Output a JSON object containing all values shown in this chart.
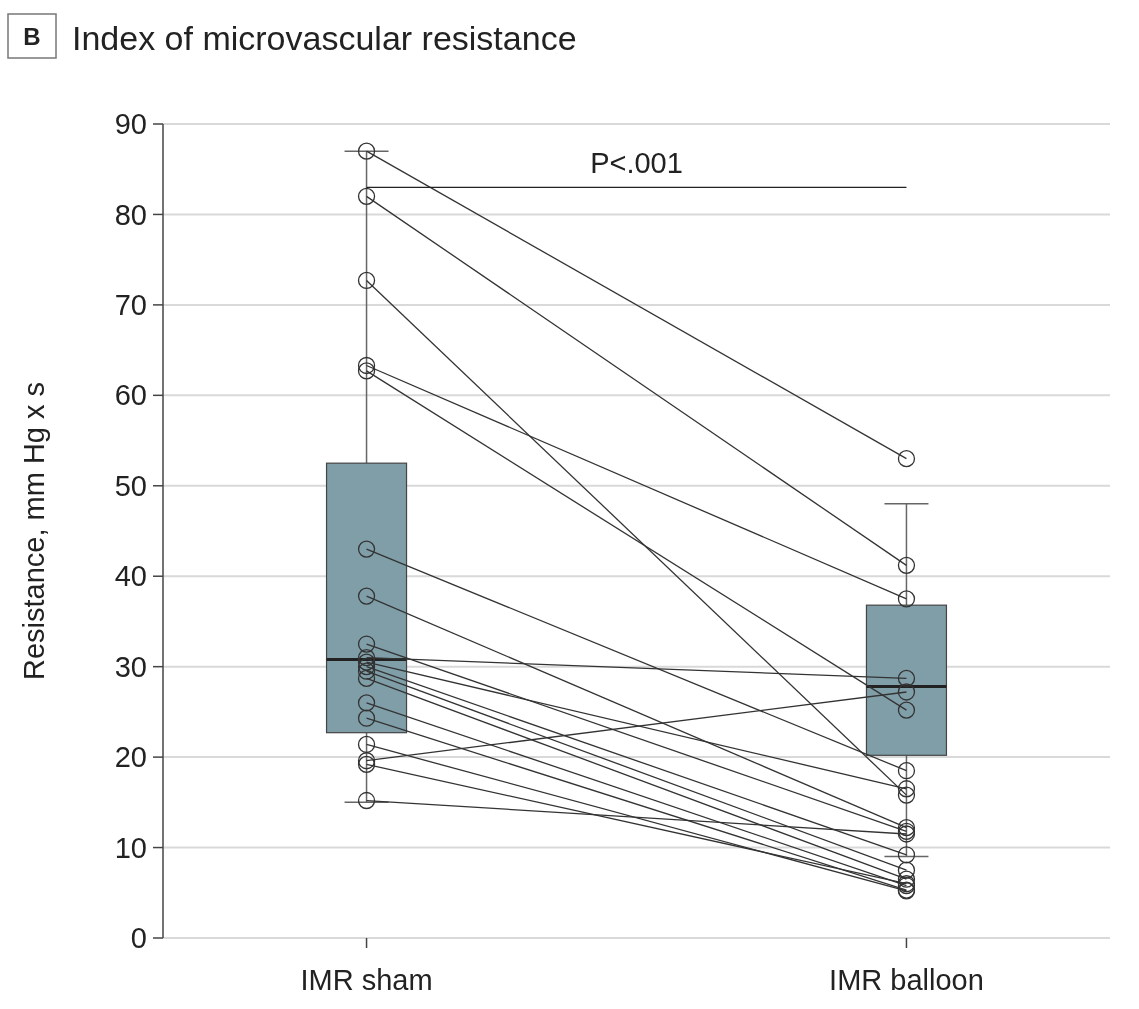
{
  "chart_data": {
    "type": "box",
    "title": "Index of microvascular resistance",
    "ylabel": "Resistance, mm Hg x s",
    "categories": [
      "IMR sham",
      "IMR balloon"
    ],
    "color": "#7f9ea8",
    "boxes": [
      {
        "low": 15,
        "q1": 22.7,
        "median": 30.8,
        "q3": 52.5,
        "high": 87
      },
      {
        "low": 9,
        "q1": 20.2,
        "median": 27.8,
        "q3": 36.8,
        "high": 48
      }
    ],
    "ylim": [
      0,
      90
    ],
    "yticks": [
      0,
      10,
      20,
      30,
      40,
      50,
      60,
      70,
      80,
      90
    ],
    "grid": "y",
    "marker": "circle",
    "annotations": [
      "B",
      "P<.001"
    ],
    "series": [
      {
        "type": "line",
        "color": "#333333",
        "x": [
          "IMR sham",
          "IMR balloon"
        ],
        "values": [
          87,
          53
        ]
      },
      {
        "type": "line",
        "color": "#333333",
        "x": [
          "IMR sham",
          "IMR balloon"
        ],
        "values": [
          82,
          41.2
        ]
      },
      {
        "type": "line",
        "color": "#333333",
        "x": [
          "IMR sham",
          "IMR balloon"
        ],
        "values": [
          72.7,
          15.8
        ]
      },
      {
        "type": "line",
        "color": "#333333",
        "x": [
          "IMR sham",
          "IMR balloon"
        ],
        "values": [
          63.3,
          37.5
        ]
      },
      {
        "type": "line",
        "color": "#333333",
        "x": [
          "IMR sham",
          "IMR balloon"
        ],
        "values": [
          62.7,
          25.2
        ]
      },
      {
        "type": "line",
        "color": "#333333",
        "x": [
          "IMR sham",
          "IMR balloon"
        ],
        "values": [
          43,
          18.5
        ]
      },
      {
        "type": "line",
        "color": "#333333",
        "x": [
          "IMR sham",
          "IMR balloon"
        ],
        "values": [
          37.8,
          12.2
        ]
      },
      {
        "type": "line",
        "color": "#333333",
        "x": [
          "IMR sham",
          "IMR balloon"
        ],
        "values": [
          32.5,
          11.8
        ]
      },
      {
        "type": "line",
        "color": "#333333",
        "x": [
          "IMR sham",
          "IMR balloon"
        ],
        "values": [
          31,
          28.7
        ]
      },
      {
        "type": "line",
        "color": "#333333",
        "x": [
          "IMR sham",
          "IMR balloon"
        ],
        "values": [
          30.5,
          16.5
        ]
      },
      {
        "type": "line",
        "color": "#333333",
        "x": [
          "IMR sham",
          "IMR balloon"
        ],
        "values": [
          30,
          9.2
        ]
      },
      {
        "type": "line",
        "color": "#333333",
        "x": [
          "IMR sham",
          "IMR balloon"
        ],
        "values": [
          29.5,
          7.5
        ]
      },
      {
        "type": "line",
        "color": "#333333",
        "x": [
          "IMR sham",
          "IMR balloon"
        ],
        "values": [
          28.7,
          6.5
        ]
      },
      {
        "type": "line",
        "color": "#333333",
        "x": [
          "IMR sham",
          "IMR balloon"
        ],
        "values": [
          26,
          5.8
        ]
      },
      {
        "type": "line",
        "color": "#333333",
        "x": [
          "IMR sham",
          "IMR balloon"
        ],
        "values": [
          24.3,
          5.3
        ]
      },
      {
        "type": "line",
        "color": "#333333",
        "x": [
          "IMR sham",
          "IMR balloon"
        ],
        "values": [
          21.4,
          5.2
        ]
      },
      {
        "type": "line",
        "color": "#333333",
        "x": [
          "IMR sham",
          "IMR balloon"
        ],
        "values": [
          19.6,
          27.2
        ]
      },
      {
        "type": "line",
        "color": "#333333",
        "x": [
          "IMR sham",
          "IMR balloon"
        ],
        "values": [
          19.2,
          6
        ]
      },
      {
        "type": "line",
        "color": "#333333",
        "x": [
          "IMR sham",
          "IMR balloon"
        ],
        "values": [
          15.2,
          11.5
        ]
      }
    ]
  }
}
